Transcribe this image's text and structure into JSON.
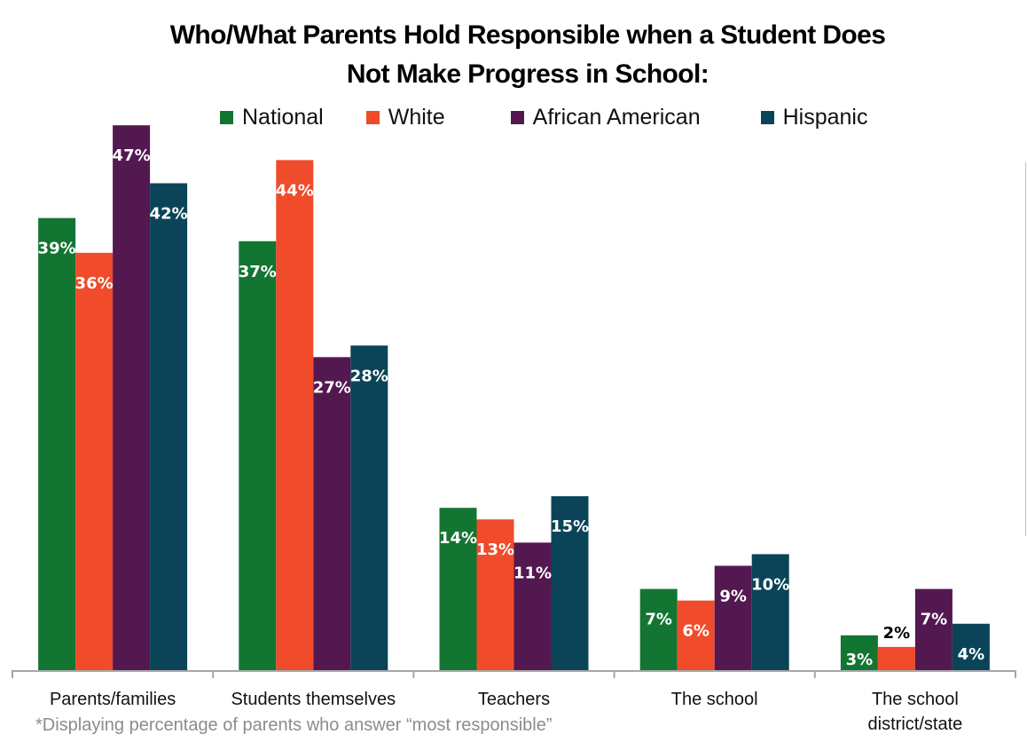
{
  "chart_data": {
    "type": "bar",
    "title": "Who/What Parents Hold Responsible when a Student Does Not Make Progress in School:",
    "title_lines": [
      "Who/What Parents Hold Responsible when a Student Does",
      "Not Make Progress in School:"
    ],
    "xlabel": "",
    "ylabel": "",
    "ylim": [
      0,
      50
    ],
    "grid": false,
    "legend_position": "top",
    "categories": [
      "Parents/families",
      "Students themselves",
      "Teachers",
      "The school",
      "The school district/state"
    ],
    "category_label_lines": [
      [
        "Parents/families"
      ],
      [
        "Students themselves"
      ],
      [
        "Teachers"
      ],
      [
        "The school"
      ],
      [
        "The school",
        "district/state"
      ]
    ],
    "series": [
      {
        "name": "National",
        "color": "#137532",
        "values": [
          39,
          37,
          14,
          7,
          3
        ]
      },
      {
        "name": "White",
        "color": "#f04b2a",
        "values": [
          36,
          44,
          13,
          6,
          2
        ]
      },
      {
        "name": "African American",
        "color": "#541851",
        "values": [
          47,
          27,
          11,
          9,
          7
        ]
      },
      {
        "name": "Hispanic",
        "color": "#0b4458",
        "values": [
          42,
          28,
          15,
          10,
          4
        ]
      }
    ],
    "data_labels": [
      [
        "39%",
        "37%",
        "14%",
        "7%",
        "3%"
      ],
      [
        "36%",
        "44%",
        "13%",
        "6%",
        "2%"
      ],
      [
        "47%",
        "27%",
        "11%",
        "9%",
        "7%"
      ],
      [
        "42%",
        "28%",
        "15%",
        "10%",
        "4%"
      ]
    ],
    "footnote": "*Displaying percentage of parents who answer “most responsible”"
  },
  "legend": [
    {
      "label": "National",
      "color": "#137532"
    },
    {
      "label": "White",
      "color": "#f04b2a"
    },
    {
      "label": "African American",
      "color": "#541851"
    },
    {
      "label": "Hispanic",
      "color": "#0b4458"
    }
  ]
}
